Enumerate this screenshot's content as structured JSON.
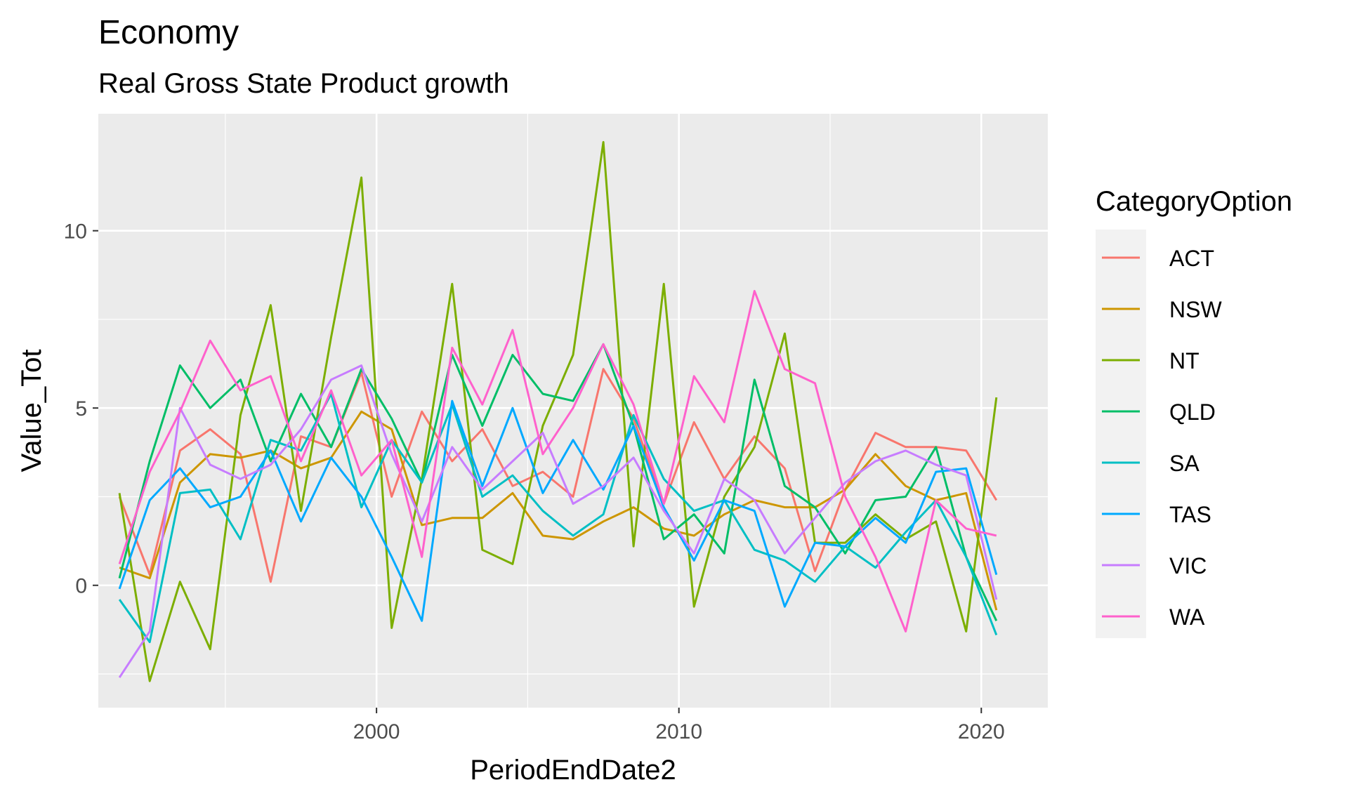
{
  "chart_data": {
    "type": "line",
    "title": "Economy",
    "subtitle": "Real Gross State Product growth",
    "xlabel": "PeriodEndDate2",
    "ylabel": "Value_Tot",
    "xlim": [
      1990.8,
      2022.2
    ],
    "ylim": [
      -3.45,
      13.3
    ],
    "x_ticks": [
      2000,
      2010,
      2020
    ],
    "x_tick_labels": [
      "2000",
      "2010",
      "2020"
    ],
    "y_ticks": [
      0,
      5,
      10
    ],
    "y_tick_labels": [
      "0",
      "5",
      "10"
    ],
    "grid": true,
    "legend": {
      "title": "CategoryOption",
      "placement": "right"
    },
    "x": [
      1991.5,
      1992.5,
      1993.5,
      1994.5,
      1995.5,
      1996.5,
      1997.5,
      1998.5,
      1999.5,
      2000.5,
      2001.5,
      2002.5,
      2003.5,
      2004.5,
      2005.5,
      2006.5,
      2007.5,
      2008.5,
      2009.5,
      2010.5,
      2011.5,
      2012.5,
      2013.5,
      2014.5,
      2015.5,
      2016.5,
      2017.5,
      2018.5,
      2019.5,
      2020.5
    ],
    "series": [
      {
        "name": "ACT",
        "color": "#F8766D",
        "values": [
          2.5,
          0.3,
          3.8,
          4.4,
          3.7,
          0.1,
          4.2,
          3.9,
          6.0,
          2.5,
          4.9,
          3.5,
          4.4,
          2.8,
          3.2,
          2.5,
          6.1,
          4.7,
          2.3,
          4.6,
          3.0,
          4.2,
          3.3,
          0.4,
          2.7,
          4.3,
          3.9,
          3.9,
          3.8,
          2.4
        ]
      },
      {
        "name": "NSW",
        "color": "#CD9600",
        "values": [
          0.5,
          0.2,
          2.9,
          3.7,
          3.6,
          3.8,
          3.3,
          3.6,
          4.9,
          4.4,
          1.7,
          1.9,
          1.9,
          2.6,
          1.4,
          1.3,
          1.8,
          2.2,
          1.6,
          1.4,
          2.0,
          2.4,
          2.2,
          2.2,
          2.7,
          3.7,
          2.8,
          2.4,
          2.6,
          -0.7
        ]
      },
      {
        "name": "NT",
        "color": "#7CAE00",
        "values": [
          2.6,
          -2.7,
          0.1,
          -1.8,
          4.8,
          7.9,
          2.1,
          7.0,
          11.5,
          -1.2,
          3.0,
          8.5,
          1.0,
          0.6,
          4.5,
          6.5,
          12.5,
          1.1,
          8.5,
          -0.6,
          2.5,
          3.9,
          7.1,
          1.2,
          1.2,
          2.0,
          1.3,
          1.8,
          -1.3,
          5.3
        ]
      },
      {
        "name": "QLD",
        "color": "#00BE67",
        "values": [
          0.2,
          3.5,
          6.2,
          5.0,
          5.8,
          3.5,
          5.4,
          3.9,
          6.1,
          4.7,
          2.9,
          6.5,
          4.5,
          6.5,
          5.4,
          5.2,
          6.8,
          4.5,
          1.3,
          2.0,
          0.9,
          5.8,
          2.8,
          2.2,
          0.9,
          2.4,
          2.5,
          3.9,
          0.8,
          -1.0
        ]
      },
      {
        "name": "SA",
        "color": "#00BFC4",
        "values": [
          -0.4,
          -1.6,
          2.6,
          2.7,
          1.3,
          4.1,
          3.8,
          5.4,
          2.2,
          4.1,
          2.9,
          5.1,
          2.5,
          3.1,
          2.1,
          1.4,
          2.0,
          4.8,
          3.0,
          2.1,
          2.4,
          1.0,
          0.7,
          0.1,
          1.1,
          0.5,
          1.5,
          2.4,
          0.8,
          -1.4
        ]
      },
      {
        "name": "TAS",
        "color": "#00A9FF",
        "values": [
          -0.1,
          2.4,
          3.3,
          2.2,
          2.5,
          3.8,
          1.8,
          3.6,
          2.5,
          0.8,
          -1.0,
          5.2,
          2.8,
          5.0,
          2.6,
          4.1,
          2.7,
          4.5,
          2.2,
          0.7,
          2.4,
          2.1,
          -0.6,
          1.2,
          1.1,
          1.9,
          1.2,
          3.2,
          3.3,
          0.3
        ]
      },
      {
        "name": "VIC",
        "color": "#C77CFF",
        "values": [
          -2.6,
          -1.3,
          5.0,
          3.4,
          3.0,
          3.4,
          4.4,
          5.8,
          6.2,
          3.7,
          1.8,
          3.9,
          2.7,
          3.5,
          4.3,
          2.3,
          2.8,
          3.6,
          2.1,
          0.9,
          3.0,
          2.4,
          0.9,
          1.9,
          2.9,
          3.5,
          3.8,
          3.4,
          3.1,
          -0.4
        ]
      },
      {
        "name": "WA",
        "color": "#FF61CC",
        "values": [
          0.6,
          3.2,
          4.9,
          6.9,
          5.5,
          5.9,
          3.5,
          5.5,
          3.1,
          4.1,
          0.8,
          6.7,
          5.1,
          7.2,
          3.7,
          5.0,
          6.8,
          5.1,
          2.3,
          5.9,
          4.6,
          8.3,
          6.1,
          5.7,
          2.5,
          0.8,
          -1.3,
          2.4,
          1.6,
          1.4
        ]
      }
    ]
  }
}
